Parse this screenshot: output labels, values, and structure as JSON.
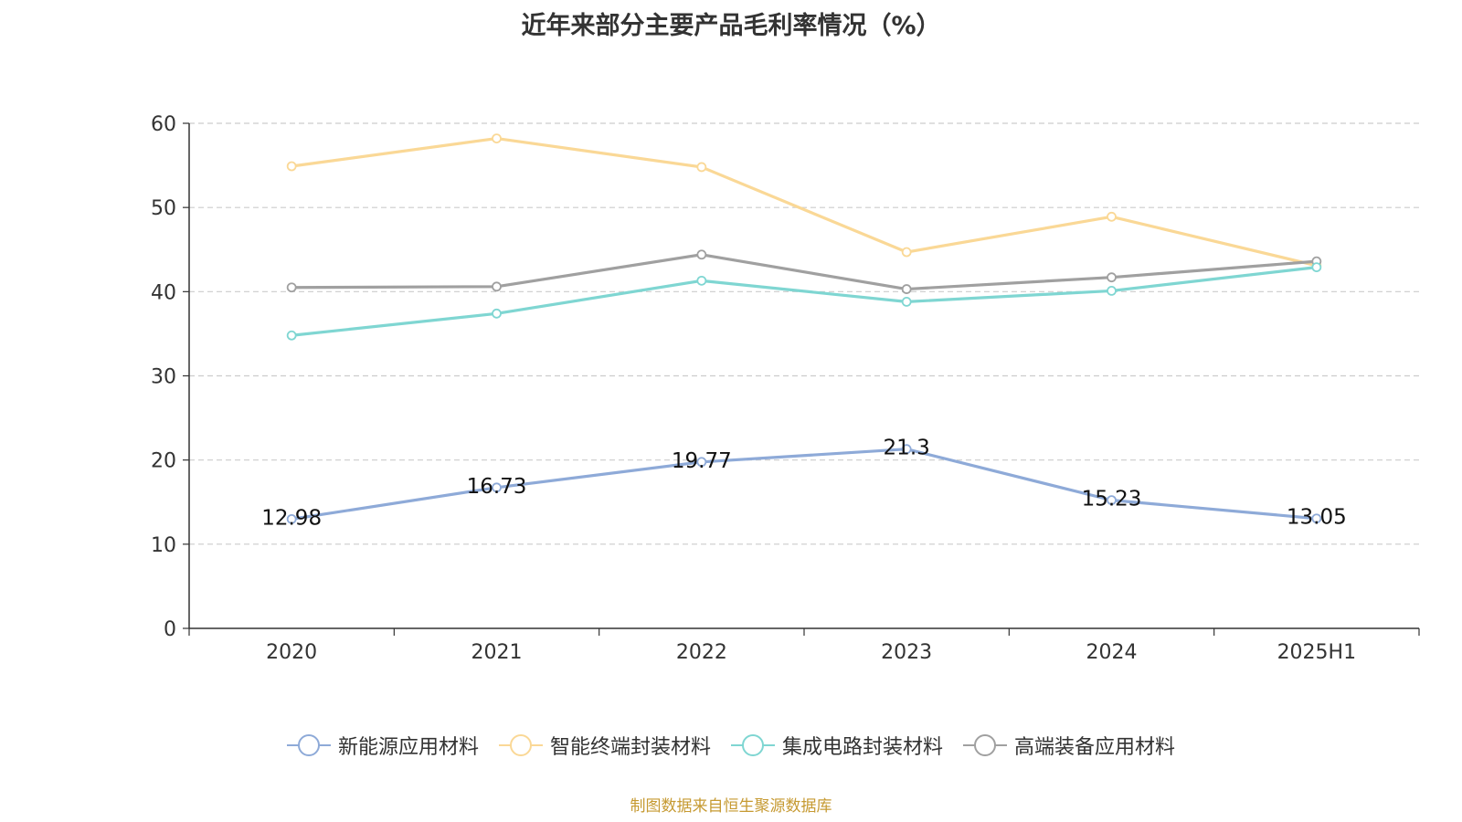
{
  "title": "近年来部分主要产品毛利率情况（%）",
  "source": "制图数据来自恒生聚源数据库",
  "chart_data": {
    "type": "line",
    "title": "近年来部分主要产品毛利率情况（%）",
    "categories": [
      "2020",
      "2021",
      "2022",
      "2023",
      "2024",
      "2025H1"
    ],
    "ylim": [
      0,
      60
    ],
    "yticks": [
      0,
      10,
      20,
      30,
      40,
      50,
      60
    ],
    "grid": true,
    "legend_position": "bottom",
    "series": [
      {
        "name": "新能源应用材料",
        "color": "#8eaad8",
        "show_labels": true,
        "labels": [
          "12.98",
          "16.73",
          "19.77",
          "21.3",
          "15.23",
          "13.05"
        ],
        "values": [
          12.98,
          16.73,
          19.77,
          21.3,
          15.23,
          13.05
        ]
      },
      {
        "name": "智能终端封装材料",
        "color": "#fad896",
        "show_labels": false,
        "values": [
          54.9,
          58.2,
          54.8,
          44.7,
          48.9,
          43.1
        ]
      },
      {
        "name": "集成电路封装材料",
        "color": "#7fd6d2",
        "show_labels": false,
        "values": [
          34.8,
          37.4,
          41.3,
          38.8,
          40.1,
          42.9
        ]
      },
      {
        "name": "高端装备应用材料",
        "color": "#a0a0a0",
        "show_labels": false,
        "values": [
          40.5,
          40.6,
          44.4,
          40.3,
          41.7,
          43.6
        ]
      }
    ]
  }
}
